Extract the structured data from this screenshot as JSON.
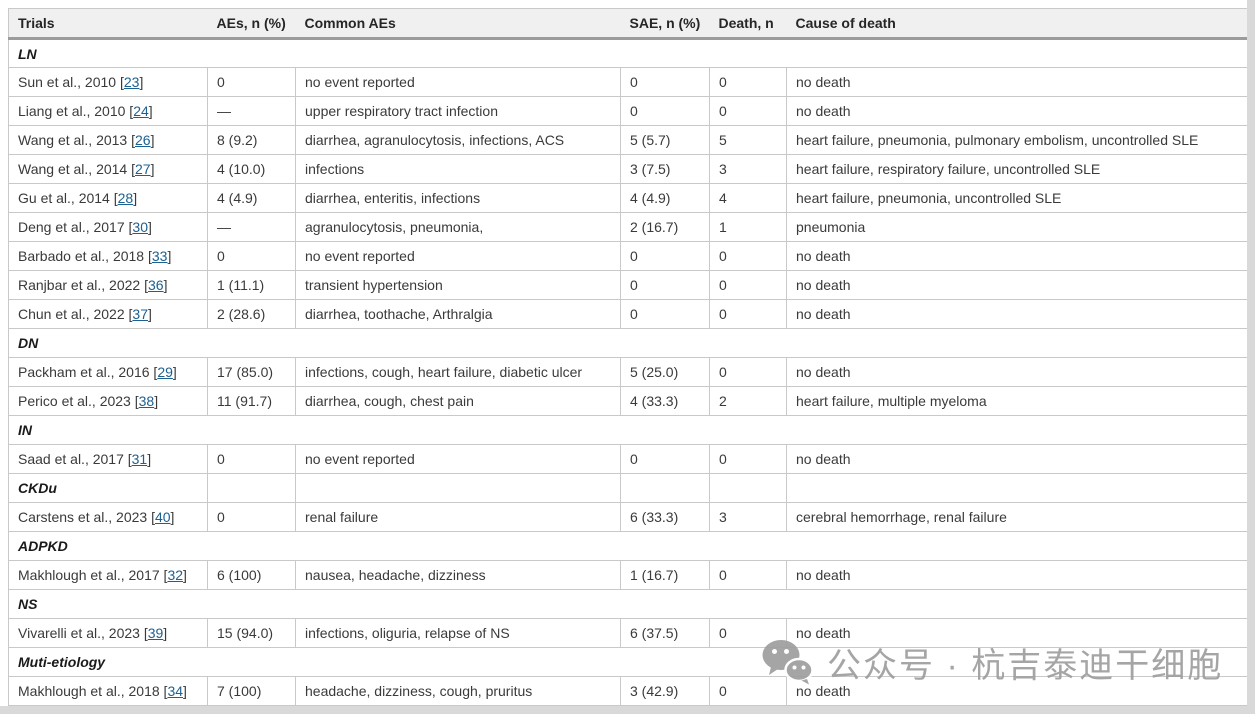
{
  "colors": {
    "text": "#3a3a3a",
    "header_text": "#262626",
    "link": "#1c6091",
    "border": "#c9c9c9",
    "header_border": "#9b9b9b",
    "header_bg": "#f0f0f0",
    "page_edge": "#d9d9d9",
    "watermark": "#9e9e9e"
  },
  "watermark": {
    "icon": "wechat-icon",
    "text": "公众号 · 杭吉泰迪干细胞"
  },
  "table": {
    "columns": [
      "Trials",
      "AEs, n (%)",
      "Common AEs",
      "SAE, n (%)",
      "Death, n",
      "Cause of death"
    ],
    "rows": [
      {
        "type": "section",
        "label": "LN",
        "cells": false
      },
      {
        "type": "data",
        "trial": "Sun et al., 2010",
        "ref": "23",
        "aes": "0",
        "common": "no event reported",
        "sae": "0",
        "death": "0",
        "cause": "no death"
      },
      {
        "type": "data",
        "trial": "Liang et al., 2010",
        "ref": "24",
        "aes": "—",
        "common": "upper respiratory tract infection",
        "sae": "0",
        "death": "0",
        "cause": "no death"
      },
      {
        "type": "data",
        "trial": "Wang et al., 2013",
        "ref": "26",
        "aes": "8 (9.2)",
        "common": "diarrhea, agranulocytosis, infections, ACS",
        "sae": "5 (5.7)",
        "death": "5",
        "cause": "heart failure, pneumonia, pulmonary embolism, uncontrolled SLE"
      },
      {
        "type": "data",
        "trial": "Wang et al., 2014",
        "ref": "27",
        "aes": "4 (10.0)",
        "common": "infections",
        "sae": "3 (7.5)",
        "death": "3",
        "cause": "heart failure, respiratory failure, uncontrolled SLE"
      },
      {
        "type": "data",
        "trial": "Gu et al., 2014",
        "ref": "28",
        "aes": "4 (4.9)",
        "common": "diarrhea, enteritis, infections",
        "sae": "4 (4.9)",
        "death": "4",
        "cause": "heart failure, pneumonia, uncontrolled SLE"
      },
      {
        "type": "data",
        "trial": "Deng et al., 2017",
        "ref": "30",
        "aes": "—",
        "common": "agranulocytosis, pneumonia,",
        "sae": "2 (16.7)",
        "death": "1",
        "cause": "pneumonia"
      },
      {
        "type": "data",
        "trial": "Barbado et al., 2018",
        "ref": "33",
        "aes": "0",
        "common": "no event reported",
        "sae": "0",
        "death": "0",
        "cause": "no death"
      },
      {
        "type": "data",
        "trial": "Ranjbar et al., 2022",
        "ref": "36",
        "aes": "1 (11.1)",
        "common": "transient hypertension",
        "sae": "0",
        "death": "0",
        "cause": "no death"
      },
      {
        "type": "data",
        "trial": "Chun et al., 2022",
        "ref": "37",
        "aes": "2 (28.6)",
        "common": "diarrhea, toothache, Arthralgia",
        "sae": "0",
        "death": "0",
        "cause": "no death"
      },
      {
        "type": "section",
        "label": "DN",
        "cells": false
      },
      {
        "type": "data",
        "trial": "Packham et al., 2016",
        "ref": "29",
        "aes": "17 (85.0)",
        "common": "infections, cough, heart failure, diabetic ulcer",
        "sae": "5 (25.0)",
        "death": "0",
        "cause": "no death"
      },
      {
        "type": "data",
        "trial": "Perico et al., 2023",
        "ref": "38",
        "aes": "11 (91.7)",
        "common": "diarrhea, cough, chest pain",
        "sae": "4 (33.3)",
        "death": "2",
        "cause": "heart failure, multiple myeloma"
      },
      {
        "type": "section",
        "label": "IN",
        "cells": false
      },
      {
        "type": "data",
        "trial": "Saad et al., 2017",
        "ref": "31",
        "aes": "0",
        "common": "no event reported",
        "sae": "0",
        "death": "0",
        "cause": "no death"
      },
      {
        "type": "section",
        "label": "CKDu",
        "cells": true
      },
      {
        "type": "data",
        "trial": "Carstens et al., 2023",
        "ref": "40",
        "aes": "0",
        "common": "renal failure",
        "sae": "6 (33.3)",
        "death": "3",
        "cause": "cerebral hemorrhage, renal failure"
      },
      {
        "type": "section",
        "label": "ADPKD",
        "cells": false
      },
      {
        "type": "data",
        "trial": "Makhlough et al., 2017",
        "ref": "32",
        "aes": "6 (100)",
        "common": "nausea, headache, dizziness",
        "sae": "1 (16.7)",
        "death": "0",
        "cause": "no death"
      },
      {
        "type": "section",
        "label": "NS",
        "cells": false
      },
      {
        "type": "data",
        "trial": "Vivarelli et al., 2023",
        "ref": "39",
        "aes": "15 (94.0)",
        "common": "infections, oliguria, relapse of NS",
        "sae": "6 (37.5)",
        "death": "0",
        "cause": "no death"
      },
      {
        "type": "section",
        "label": "Muti-etiology",
        "cells": false
      },
      {
        "type": "data",
        "trial": "Makhlough et al., 2018",
        "ref": "34",
        "aes": "7 (100)",
        "common": "headache, dizziness, cough, pruritus",
        "sae": "3 (42.9)",
        "death": "0",
        "cause": "no death"
      }
    ]
  }
}
